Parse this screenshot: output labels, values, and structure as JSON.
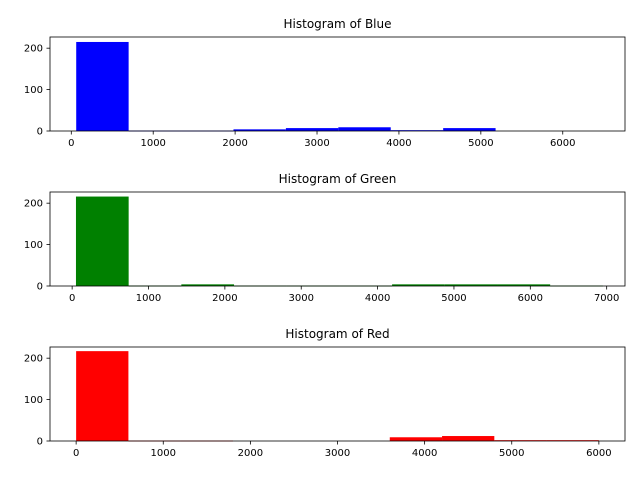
{
  "chart_data": [
    {
      "type": "bar",
      "title": "Histogram of Blue",
      "xlabel": "",
      "ylabel": "",
      "color": "#0000ff",
      "xlim": [
        -260,
        6760
      ],
      "ylim": [
        0,
        227
      ],
      "xticks": [
        0,
        1000,
        2000,
        3000,
        4000,
        5000,
        6000
      ],
      "yticks": [
        0,
        100,
        200
      ],
      "bins": [
        {
          "start": 60,
          "end": 700,
          "count": 215
        },
        {
          "start": 700,
          "end": 1340,
          "count": 1
        },
        {
          "start": 1340,
          "end": 1980,
          "count": 1
        },
        {
          "start": 1980,
          "end": 2620,
          "count": 4
        },
        {
          "start": 2620,
          "end": 3260,
          "count": 7
        },
        {
          "start": 3260,
          "end": 3900,
          "count": 9
        },
        {
          "start": 3900,
          "end": 4540,
          "count": 2
        },
        {
          "start": 4540,
          "end": 5180,
          "count": 7
        },
        {
          "start": 5180,
          "end": 5820,
          "count": 0
        },
        {
          "start": 5820,
          "end": 6460,
          "count": 0
        }
      ]
    },
    {
      "type": "bar",
      "title": "Histogram of Green",
      "xlabel": "",
      "ylabel": "",
      "color": "#008000",
      "xlim": [
        -290,
        7240
      ],
      "ylim": [
        0,
        227
      ],
      "xticks": [
        0,
        1000,
        2000,
        3000,
        4000,
        5000,
        6000,
        7000
      ],
      "yticks": [
        0,
        100,
        200
      ],
      "bins": [
        {
          "start": 50,
          "end": 740,
          "count": 216
        },
        {
          "start": 740,
          "end": 1430,
          "count": 1
        },
        {
          "start": 1430,
          "end": 2120,
          "count": 4
        },
        {
          "start": 2120,
          "end": 2810,
          "count": 1
        },
        {
          "start": 2810,
          "end": 3500,
          "count": 1
        },
        {
          "start": 3500,
          "end": 4190,
          "count": 1
        },
        {
          "start": 4190,
          "end": 4880,
          "count": 4
        },
        {
          "start": 4880,
          "end": 5570,
          "count": 4
        },
        {
          "start": 5570,
          "end": 6260,
          "count": 4
        },
        {
          "start": 6260,
          "end": 6950,
          "count": 1
        }
      ]
    },
    {
      "type": "bar",
      "title": "Histogram of Red",
      "xlabel": "",
      "ylabel": "",
      "color": "#ff0000",
      "xlim": [
        -300,
        6300
      ],
      "ylim": [
        0,
        227
      ],
      "xticks": [
        0,
        1000,
        2000,
        3000,
        4000,
        5000,
        6000
      ],
      "yticks": [
        0,
        100,
        200
      ],
      "bins": [
        {
          "start": 0,
          "end": 600,
          "count": 217
        },
        {
          "start": 600,
          "end": 1200,
          "count": 1
        },
        {
          "start": 1200,
          "end": 1800,
          "count": 1
        },
        {
          "start": 1800,
          "end": 2400,
          "count": 0
        },
        {
          "start": 2400,
          "end": 3000,
          "count": 0
        },
        {
          "start": 3000,
          "end": 3600,
          "count": 0
        },
        {
          "start": 3600,
          "end": 4200,
          "count": 9
        },
        {
          "start": 4200,
          "end": 4800,
          "count": 12
        },
        {
          "start": 4800,
          "end": 5400,
          "count": 2
        },
        {
          "start": 5400,
          "end": 6000,
          "count": 2
        }
      ]
    }
  ]
}
